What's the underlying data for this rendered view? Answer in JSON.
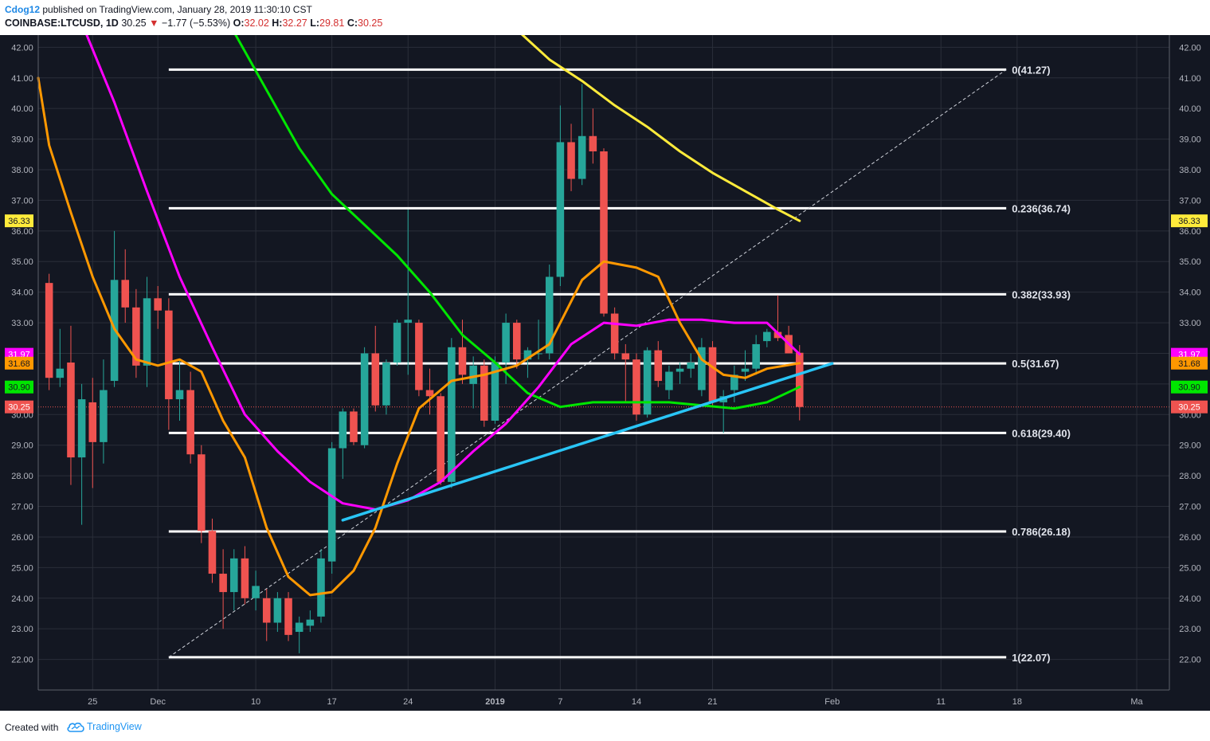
{
  "header": {
    "author": "Cdog12",
    "published_text": "published on TradingView.com, January 28, 2019 11:30:10 CST",
    "symbol": "COINBASE:LTCUSD, 1D",
    "last": "30.25",
    "arrow": "▼",
    "change": "−1.77 (−5.53%)",
    "o_label": "O:",
    "o_value": "32.02",
    "h_label": "H:",
    "h_value": "32.27",
    "l_label": "L:",
    "l_value": "29.81",
    "c_label": "C:",
    "c_value": "30.25"
  },
  "footer": {
    "created_with": "Created with",
    "brand": "TradingView",
    "brand_icon": "tradingview-cloud-icon"
  },
  "chart_data": {
    "type": "candlestick",
    "title": "",
    "xlabel": "",
    "ylabel": "",
    "ylim": [
      21.0,
      42.4
    ],
    "xlim_days": [
      "2018-11-20",
      "2019-03-04"
    ],
    "grid": true,
    "background": "#131722",
    "y_ticks": [
      "22.00",
      "23.00",
      "24.00",
      "25.00",
      "26.00",
      "27.00",
      "28.00",
      "29.00",
      "30.00",
      "31.00",
      "32.00",
      "33.00",
      "34.00",
      "35.00",
      "36.00",
      "37.00",
      "38.00",
      "39.00",
      "40.00",
      "41.00",
      "42.00"
    ],
    "x_ticks": [
      {
        "date": "2018-11-25",
        "label": "25"
      },
      {
        "date": "2018-12-01",
        "label": "Dec"
      },
      {
        "date": "2018-12-10",
        "label": "10"
      },
      {
        "date": "2018-12-17",
        "label": "17"
      },
      {
        "date": "2018-12-24",
        "label": "24"
      },
      {
        "date": "2019-01-01",
        "label": "2019"
      },
      {
        "date": "2019-01-07",
        "label": "7"
      },
      {
        "date": "2019-01-14",
        "label": "14"
      },
      {
        "date": "2019-01-21",
        "label": "21"
      },
      {
        "date": "2019-02-01",
        "label": "Feb"
      },
      {
        "date": "2019-02-11",
        "label": "11"
      },
      {
        "date": "2019-02-18",
        "label": "18"
      },
      {
        "date": "2019-03-01",
        "label": "Ma"
      }
    ],
    "colors": {
      "up": "#26a69a",
      "down": "#ef5350",
      "grid": "#2a2e39",
      "axis_text": "#b2b5be",
      "fib": "#ffffff"
    },
    "candles": [
      {
        "date": "2018-11-21",
        "o": 34.3,
        "h": 34.6,
        "l": 30.8,
        "c": 31.2
      },
      {
        "date": "2018-11-22",
        "o": 31.2,
        "h": 32.8,
        "l": 30.9,
        "c": 31.5
      },
      {
        "date": "2018-11-23",
        "o": 31.7,
        "h": 32.9,
        "l": 27.7,
        "c": 28.6
      },
      {
        "date": "2018-11-24",
        "o": 28.6,
        "h": 31.0,
        "l": 26.4,
        "c": 30.5
      },
      {
        "date": "2018-11-25",
        "o": 30.4,
        "h": 31.2,
        "l": 27.6,
        "c": 29.1
      },
      {
        "date": "2018-11-26",
        "o": 29.1,
        "h": 31.8,
        "l": 28.4,
        "c": 30.8
      },
      {
        "date": "2018-11-27",
        "o": 31.1,
        "h": 36.0,
        "l": 30.9,
        "c": 34.4
      },
      {
        "date": "2018-11-28",
        "o": 34.4,
        "h": 35.4,
        "l": 33.0,
        "c": 33.5
      },
      {
        "date": "2018-11-29",
        "o": 33.5,
        "h": 34.1,
        "l": 31.2,
        "c": 31.6
      },
      {
        "date": "2018-11-30",
        "o": 31.6,
        "h": 34.5,
        "l": 30.9,
        "c": 33.8
      },
      {
        "date": "2018-12-01",
        "o": 33.8,
        "h": 34.2,
        "l": 32.8,
        "c": 33.4
      },
      {
        "date": "2018-12-02",
        "o": 33.4,
        "h": 33.8,
        "l": 29.5,
        "c": 30.5
      },
      {
        "date": "2018-12-03",
        "o": 30.5,
        "h": 31.8,
        "l": 29.8,
        "c": 30.8
      },
      {
        "date": "2018-12-04",
        "o": 30.8,
        "h": 31.4,
        "l": 28.4,
        "c": 28.7
      },
      {
        "date": "2018-12-05",
        "o": 28.7,
        "h": 29.0,
        "l": 25.8,
        "c": 26.2
      },
      {
        "date": "2018-12-06",
        "o": 26.2,
        "h": 26.6,
        "l": 24.5,
        "c": 24.8
      },
      {
        "date": "2018-12-07",
        "o": 24.8,
        "h": 25.6,
        "l": 23.0,
        "c": 24.2
      },
      {
        "date": "2018-12-08",
        "o": 24.2,
        "h": 25.6,
        "l": 23.6,
        "c": 25.3
      },
      {
        "date": "2018-12-09",
        "o": 25.3,
        "h": 25.7,
        "l": 23.8,
        "c": 24.0
      },
      {
        "date": "2018-12-10",
        "o": 24.0,
        "h": 24.9,
        "l": 23.6,
        "c": 24.4
      },
      {
        "date": "2018-12-11",
        "o": 24.0,
        "h": 24.3,
        "l": 22.6,
        "c": 23.2
      },
      {
        "date": "2018-12-12",
        "o": 23.2,
        "h": 24.2,
        "l": 22.9,
        "c": 24.0
      },
      {
        "date": "2018-12-13",
        "o": 24.0,
        "h": 24.2,
        "l": 22.6,
        "c": 22.8
      },
      {
        "date": "2018-12-14",
        "o": 22.9,
        "h": 23.4,
        "l": 22.2,
        "c": 23.2
      },
      {
        "date": "2018-12-15",
        "o": 23.1,
        "h": 23.6,
        "l": 22.9,
        "c": 23.3
      },
      {
        "date": "2018-12-16",
        "o": 23.4,
        "h": 25.6,
        "l": 23.2,
        "c": 25.3
      },
      {
        "date": "2018-12-17",
        "o": 25.2,
        "h": 29.1,
        "l": 24.8,
        "c": 28.9
      },
      {
        "date": "2018-12-18",
        "o": 28.9,
        "h": 30.2,
        "l": 27.9,
        "c": 30.1
      },
      {
        "date": "2018-12-19",
        "o": 30.1,
        "h": 30.2,
        "l": 29.0,
        "c": 29.1
      },
      {
        "date": "2018-12-20",
        "o": 29.0,
        "h": 32.2,
        "l": 28.9,
        "c": 32.0
      },
      {
        "date": "2018-12-21",
        "o": 32.0,
        "h": 32.9,
        "l": 30.1,
        "c": 30.3
      },
      {
        "date": "2018-12-22",
        "o": 30.3,
        "h": 31.8,
        "l": 30.0,
        "c": 31.7
      },
      {
        "date": "2018-12-23",
        "o": 31.7,
        "h": 33.1,
        "l": 31.6,
        "c": 33.0
      },
      {
        "date": "2018-12-24",
        "o": 33.0,
        "h": 36.7,
        "l": 31.3,
        "c": 33.1
      },
      {
        "date": "2018-12-25",
        "o": 33.0,
        "h": 33.1,
        "l": 30.6,
        "c": 30.8
      },
      {
        "date": "2018-12-26",
        "o": 30.8,
        "h": 31.5,
        "l": 30.0,
        "c": 30.6
      },
      {
        "date": "2018-12-27",
        "o": 30.6,
        "h": 30.7,
        "l": 27.7,
        "c": 27.8
      },
      {
        "date": "2018-12-28",
        "o": 27.8,
        "h": 32.5,
        "l": 27.6,
        "c": 32.2
      },
      {
        "date": "2018-12-29",
        "o": 32.2,
        "h": 33.1,
        "l": 31.0,
        "c": 31.3
      },
      {
        "date": "2018-12-30",
        "o": 31.0,
        "h": 31.9,
        "l": 30.2,
        "c": 31.6
      },
      {
        "date": "2018-12-31",
        "o": 31.6,
        "h": 31.8,
        "l": 29.6,
        "c": 29.8
      },
      {
        "date": "2019-01-01",
        "o": 29.8,
        "h": 31.9,
        "l": 29.7,
        "c": 31.7
      },
      {
        "date": "2019-01-02",
        "o": 31.7,
        "h": 33.3,
        "l": 31.0,
        "c": 33.0
      },
      {
        "date": "2019-01-03",
        "o": 33.0,
        "h": 33.1,
        "l": 31.5,
        "c": 31.8
      },
      {
        "date": "2019-01-04",
        "o": 31.8,
        "h": 32.2,
        "l": 31.2,
        "c": 32.1
      },
      {
        "date": "2019-01-05",
        "o": 32.0,
        "h": 33.1,
        "l": 31.8,
        "c": 32.0
      },
      {
        "date": "2019-01-06",
        "o": 32.0,
        "h": 34.9,
        "l": 31.8,
        "c": 34.5
      },
      {
        "date": "2019-01-07",
        "o": 34.5,
        "h": 40.1,
        "l": 34.2,
        "c": 38.9
      },
      {
        "date": "2019-01-08",
        "o": 38.9,
        "h": 39.5,
        "l": 37.3,
        "c": 37.7
      },
      {
        "date": "2019-01-09",
        "o": 37.7,
        "h": 40.8,
        "l": 37.5,
        "c": 39.1
      },
      {
        "date": "2019-01-10",
        "o": 39.1,
        "h": 40.0,
        "l": 38.2,
        "c": 38.6
      },
      {
        "date": "2019-01-11",
        "o": 38.6,
        "h": 38.7,
        "l": 33.2,
        "c": 33.3
      },
      {
        "date": "2019-01-12",
        "o": 33.3,
        "h": 33.5,
        "l": 31.8,
        "c": 32.0
      },
      {
        "date": "2019-01-13",
        "o": 32.0,
        "h": 32.3,
        "l": 30.4,
        "c": 31.8
      },
      {
        "date": "2019-01-14",
        "o": 31.8,
        "h": 32.0,
        "l": 29.8,
        "c": 30.0
      },
      {
        "date": "2019-01-15",
        "o": 30.0,
        "h": 32.2,
        "l": 29.9,
        "c": 32.1
      },
      {
        "date": "2019-01-16",
        "o": 32.1,
        "h": 32.4,
        "l": 30.9,
        "c": 31.1
      },
      {
        "date": "2019-01-17",
        "o": 30.8,
        "h": 31.6,
        "l": 30.5,
        "c": 31.4
      },
      {
        "date": "2019-01-18",
        "o": 31.4,
        "h": 31.7,
        "l": 31.0,
        "c": 31.5
      },
      {
        "date": "2019-01-19",
        "o": 31.5,
        "h": 32.0,
        "l": 31.2,
        "c": 31.7
      },
      {
        "date": "2019-01-20",
        "o": 30.8,
        "h": 32.5,
        "l": 30.6,
        "c": 32.2
      },
      {
        "date": "2019-01-21",
        "o": 32.2,
        "h": 32.4,
        "l": 30.3,
        "c": 30.4
      },
      {
        "date": "2019-01-22",
        "o": 30.4,
        "h": 30.8,
        "l": 29.4,
        "c": 30.6
      },
      {
        "date": "2019-01-23",
        "o": 30.8,
        "h": 31.6,
        "l": 30.4,
        "c": 31.3
      },
      {
        "date": "2019-01-24",
        "o": 31.4,
        "h": 32.1,
        "l": 31.1,
        "c": 31.5
      },
      {
        "date": "2019-01-25",
        "o": 31.5,
        "h": 32.6,
        "l": 31.3,
        "c": 32.3
      },
      {
        "date": "2019-01-26",
        "o": 32.4,
        "h": 32.8,
        "l": 32.2,
        "c": 32.7
      },
      {
        "date": "2019-01-27",
        "o": 32.7,
        "h": 33.9,
        "l": 32.4,
        "c": 32.5
      },
      {
        "date": "2019-01-28",
        "o": 32.6,
        "h": 32.9,
        "l": 32.0,
        "c": 32.0
      },
      {
        "date": "2019-01-29",
        "o": 32.02,
        "h": 32.27,
        "l": 29.81,
        "c": 30.25
      }
    ],
    "moving_averages": [
      {
        "color": "#ffeb3b",
        "width": 3,
        "points": [
          [
            "2018-12-29",
            44.2
          ],
          [
            "2019-01-06",
            41.6
          ],
          [
            "2019-01-09",
            40.9
          ],
          [
            "2019-01-12",
            40.1
          ],
          [
            "2019-01-15",
            39.4
          ],
          [
            "2019-01-18",
            38.6
          ],
          [
            "2019-01-21",
            37.9
          ],
          [
            "2019-01-24",
            37.3
          ],
          [
            "2019-01-27",
            36.7
          ],
          [
            "2019-01-29",
            36.33
          ]
        ]
      },
      {
        "color": "#00e600",
        "width": 3,
        "points": [
          [
            "2018-12-05",
            44.0
          ],
          [
            "2018-12-08",
            42.5
          ],
          [
            "2018-12-11",
            40.6
          ],
          [
            "2018-12-14",
            38.7
          ],
          [
            "2018-12-17",
            37.2
          ],
          [
            "2018-12-20",
            36.2
          ],
          [
            "2018-12-23",
            35.2
          ],
          [
            "2018-12-26",
            34.0
          ],
          [
            "2018-12-29",
            32.6
          ],
          [
            "2019-01-01",
            31.7
          ],
          [
            "2019-01-04",
            30.7
          ],
          [
            "2019-01-07",
            30.25
          ],
          [
            "2019-01-10",
            30.4
          ],
          [
            "2019-01-14",
            30.4
          ],
          [
            "2019-01-17",
            30.4
          ],
          [
            "2019-01-20",
            30.3
          ],
          [
            "2019-01-23",
            30.2
          ],
          [
            "2019-01-26",
            30.4
          ],
          [
            "2019-01-29",
            30.9
          ]
        ]
      },
      {
        "color": "#ff00ff",
        "width": 3,
        "points": [
          [
            "2018-11-24",
            42.8
          ],
          [
            "2018-11-27",
            40.2
          ],
          [
            "2018-11-30",
            37.3
          ],
          [
            "2018-12-03",
            34.5
          ],
          [
            "2018-12-06",
            32.2
          ],
          [
            "2018-12-09",
            30.0
          ],
          [
            "2018-12-12",
            28.8
          ],
          [
            "2018-12-15",
            27.8
          ],
          [
            "2018-12-18",
            27.1
          ],
          [
            "2018-12-21",
            26.9
          ],
          [
            "2018-12-24",
            27.2
          ],
          [
            "2018-12-27",
            27.8
          ],
          [
            "2018-12-30",
            28.8
          ],
          [
            "2019-01-02",
            29.7
          ],
          [
            "2019-01-05",
            30.9
          ],
          [
            "2019-01-08",
            32.3
          ],
          [
            "2019-01-11",
            33.0
          ],
          [
            "2019-01-14",
            32.9
          ],
          [
            "2019-01-17",
            33.1
          ],
          [
            "2019-01-20",
            33.1
          ],
          [
            "2019-01-23",
            33.0
          ],
          [
            "2019-01-26",
            33.0
          ],
          [
            "2019-01-29",
            31.97
          ]
        ]
      },
      {
        "color": "#ff9800",
        "width": 3,
        "points": [
          [
            "2018-11-20",
            41.0
          ],
          [
            "2018-11-21",
            38.8
          ],
          [
            "2018-11-23",
            36.6
          ],
          [
            "2018-11-25",
            34.5
          ],
          [
            "2018-11-27",
            32.8
          ],
          [
            "2018-11-29",
            31.8
          ],
          [
            "2018-12-01",
            31.6
          ],
          [
            "2018-12-03",
            31.8
          ],
          [
            "2018-12-05",
            31.4
          ],
          [
            "2018-12-07",
            29.8
          ],
          [
            "2018-12-09",
            28.6
          ],
          [
            "2018-12-11",
            26.3
          ],
          [
            "2018-12-13",
            24.7
          ],
          [
            "2018-12-15",
            24.1
          ],
          [
            "2018-12-17",
            24.2
          ],
          [
            "2018-12-19",
            24.9
          ],
          [
            "2018-12-21",
            26.3
          ],
          [
            "2018-12-23",
            28.4
          ],
          [
            "2018-12-25",
            30.2
          ],
          [
            "2018-12-28",
            31.1
          ],
          [
            "2018-12-31",
            31.3
          ],
          [
            "2019-01-03",
            31.6
          ],
          [
            "2019-01-06",
            32.3
          ],
          [
            "2019-01-09",
            34.4
          ],
          [
            "2019-01-11",
            35.0
          ],
          [
            "2019-01-14",
            34.8
          ],
          [
            "2019-01-16",
            34.5
          ],
          [
            "2019-01-18",
            33.0
          ],
          [
            "2019-01-20",
            31.8
          ],
          [
            "2019-01-22",
            31.3
          ],
          [
            "2019-01-24",
            31.2
          ],
          [
            "2019-01-26",
            31.5
          ],
          [
            "2019-01-29",
            31.68
          ]
        ]
      }
    ],
    "fib_levels": [
      {
        "price": 41.27,
        "label": "0(41.27)"
      },
      {
        "price": 36.74,
        "label": "0.236(36.74)"
      },
      {
        "price": 33.93,
        "label": "0.382(33.93)"
      },
      {
        "price": 31.67,
        "label": "0.5(31.67)"
      },
      {
        "price": 29.4,
        "label": "0.618(29.40)"
      },
      {
        "price": 26.18,
        "label": "0.786(26.18)"
      },
      {
        "price": 22.07,
        "label": "1(22.07)"
      }
    ],
    "fib_start_date": "2018-12-02",
    "fib_end_date": "2019-02-17",
    "fib_diagonal": {
      "from": [
        "2018-12-02",
        22.07
      ],
      "to": [
        "2019-02-17",
        41.27
      ]
    },
    "trendline": {
      "from": [
        "2018-12-18",
        26.55
      ],
      "to": [
        "2019-02-01",
        31.67
      ],
      "color": "#29c5f6"
    },
    "current_price_line": {
      "price": 30.25,
      "color": "#ef5350"
    },
    "price_tags": [
      {
        "price": 36.33,
        "label": "36.33",
        "bg": "#ffeb3b",
        "fg": "#131722"
      },
      {
        "price": 31.97,
        "label": "31.97",
        "bg": "#ff00ff",
        "fg": "#ffffff"
      },
      {
        "price": 31.68,
        "label": "31.68",
        "bg": "#ff9800",
        "fg": "#131722"
      },
      {
        "price": 30.9,
        "label": "30.90",
        "bg": "#00e600",
        "fg": "#131722"
      },
      {
        "price": 30.25,
        "label": "30.25",
        "bg": "#ef5350",
        "fg": "#ffffff"
      }
    ]
  }
}
